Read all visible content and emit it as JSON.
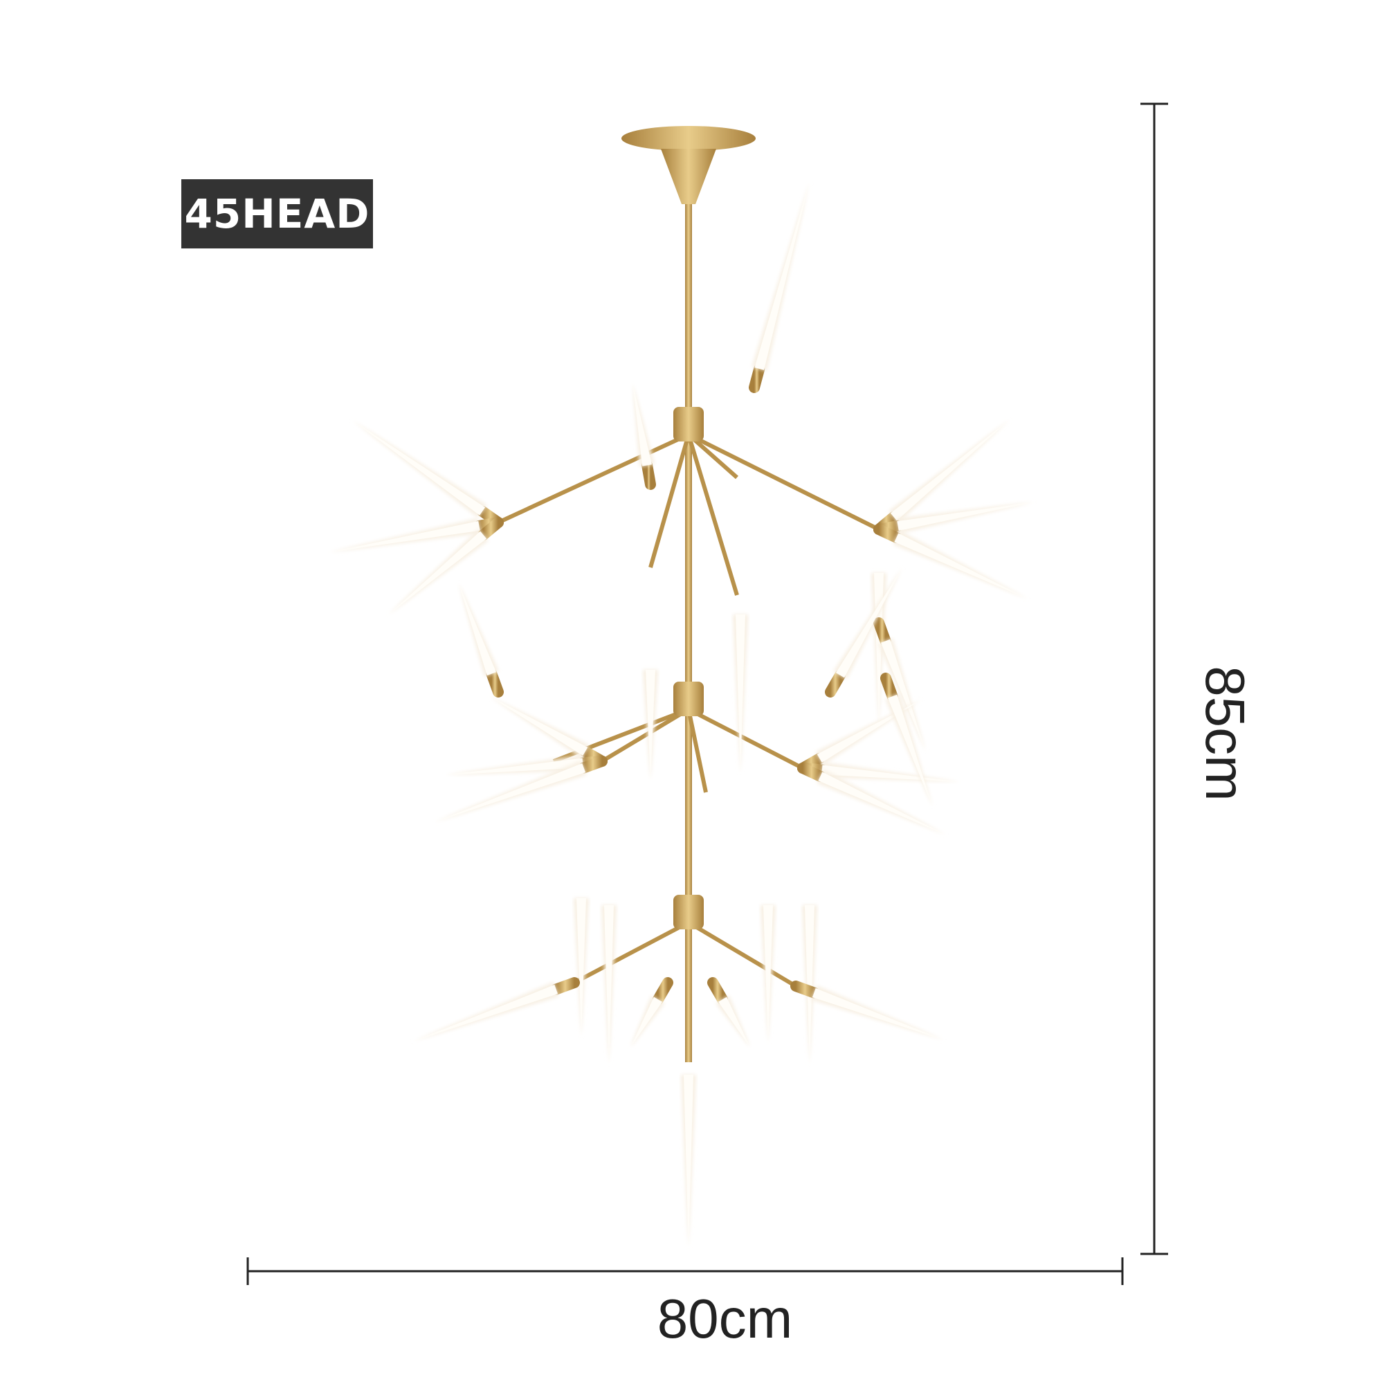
{
  "label": "45HEAD",
  "dimensions": {
    "width": "80cm",
    "height": "85cm"
  },
  "colors": {
    "badge": "#333333",
    "metal": "#c9a55a",
    "glass": "#fdfaf4",
    "dimension_line": "#222222"
  }
}
